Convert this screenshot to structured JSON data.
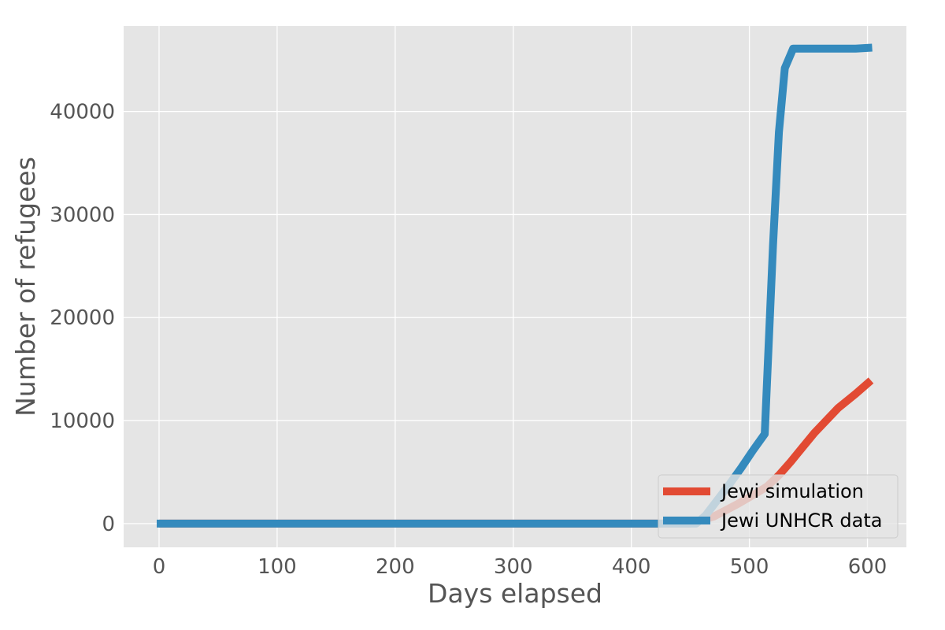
{
  "chart_data": {
    "type": "line",
    "title": "",
    "xlabel": "Days elapsed",
    "ylabel": "Number of refugees",
    "xlim": [
      -30,
      633
    ],
    "ylim": [
      -2300,
      48300
    ],
    "xticks": [
      0,
      100,
      200,
      300,
      400,
      500,
      600
    ],
    "yticks": [
      0,
      10000,
      20000,
      30000,
      40000
    ],
    "grid": true,
    "legend_position": "lower-right",
    "background_color": "#e5e5e5",
    "series": [
      {
        "name": "Jewi simulation",
        "color": "#e24a33",
        "x": [
          0,
          100,
          200,
          300,
          400,
          450,
          470,
          490,
          505,
          515,
          525,
          535,
          545,
          555,
          565,
          575,
          590,
          603
        ],
        "y": [
          0,
          0,
          0,
          0,
          0,
          0,
          700,
          1900,
          2900,
          3600,
          4700,
          6000,
          7400,
          8800,
          10000,
          11200,
          12600,
          13900
        ]
      },
      {
        "name": "Jewi UNHCR data",
        "color": "#348abd",
        "x": [
          -2,
          100,
          200,
          300,
          400,
          455,
          463,
          473,
          483,
          493,
          503,
          513,
          520,
          525,
          530,
          537,
          545,
          560,
          575,
          590,
          604
        ],
        "y": [
          0,
          0,
          0,
          0,
          0,
          0,
          800,
          2300,
          3800,
          5400,
          7100,
          8700,
          27000,
          38000,
          44200,
          46100,
          46100,
          46100,
          46100,
          46100,
          46200
        ]
      }
    ]
  }
}
